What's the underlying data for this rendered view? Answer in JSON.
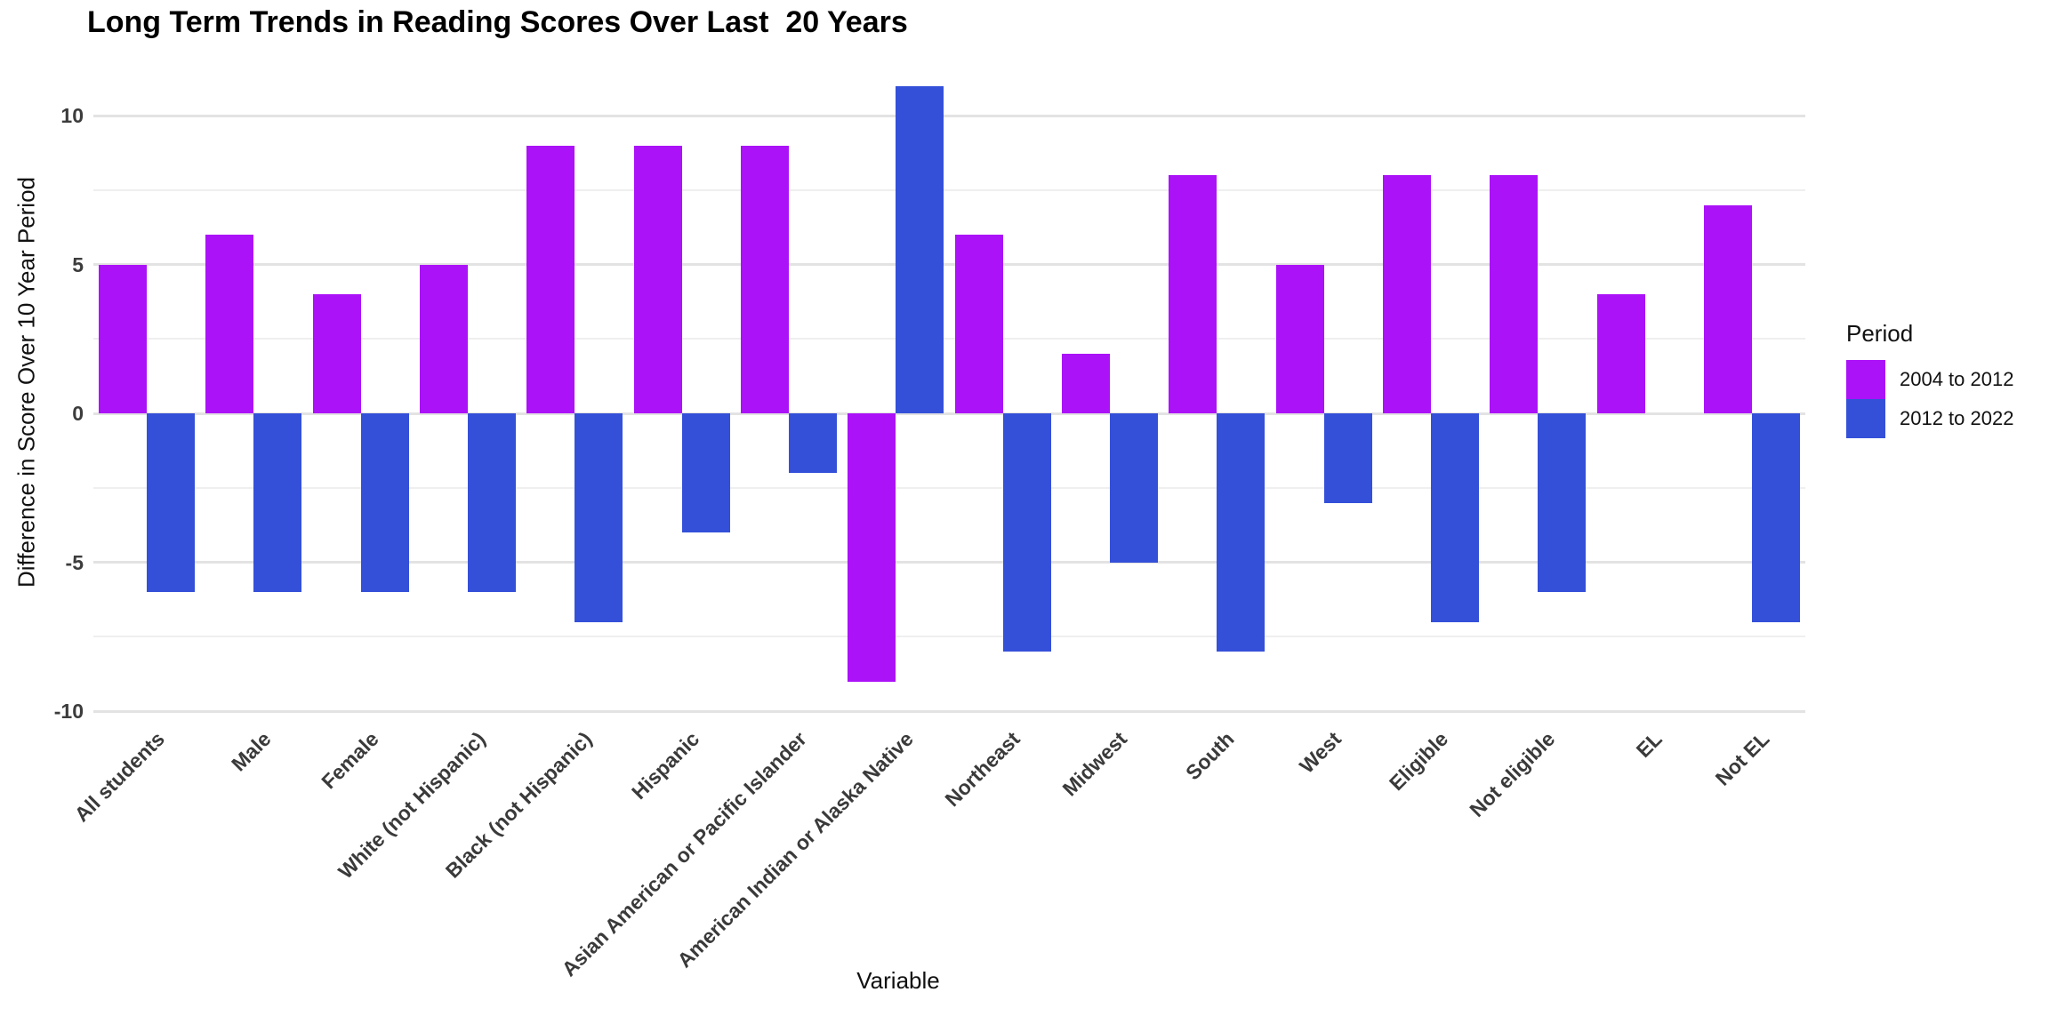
{
  "title": "Long Term Trends in Reading Scores Over Last  20 Years",
  "axes": {
    "y_title": "Difference in Score Over 10 Year Period",
    "x_title": "Variable",
    "y_major_ticks": [
      10,
      5,
      0,
      -5,
      -10
    ],
    "y_minor_ticks": [
      7.5,
      2.5,
      -2.5,
      -7.5
    ]
  },
  "legend": {
    "title": "Period",
    "items": [
      {
        "label": "2004 to 2012",
        "color": "#ab12f8"
      },
      {
        "label": "2012 to 2022",
        "color": "#3450d9"
      }
    ]
  },
  "colors": {
    "background": "#ffffff",
    "grid_major": "#e3e3e3",
    "grid_minor": "#efefef"
  },
  "chart_data": {
    "type": "bar",
    "title": "Long Term Trends in Reading Scores Over Last  20 Years",
    "xlabel": "Variable",
    "ylabel": "Difference in Score Over 10 Year Period",
    "ylim": [
      -10,
      11
    ],
    "grid": true,
    "legend_position": "right",
    "legend_title": "Period",
    "categories": [
      "All students",
      "Male",
      "Female",
      "White (not Hispanic)",
      "Black (not Hispanic)",
      "Hispanic",
      "Asian American or Pacific Islander",
      "American Indian or Alaska Native",
      "Northeast",
      "Midwest",
      "South",
      "West",
      "Eligible",
      "Not eligible",
      "EL",
      "Not EL"
    ],
    "series": [
      {
        "name": "2004 to 2012",
        "color": "#ab12f8",
        "values": [
          5,
          6,
          4,
          5,
          9,
          9,
          9,
          -9,
          6,
          2,
          8,
          5,
          8,
          8,
          4,
          7
        ]
      },
      {
        "name": "2012 to 2022",
        "color": "#3450d9",
        "values": [
          -6,
          -6,
          -6,
          -6,
          -7,
          -4,
          -2,
          11,
          -8,
          -5,
          -8,
          -3,
          -7,
          -6,
          0,
          -7
        ]
      }
    ]
  }
}
